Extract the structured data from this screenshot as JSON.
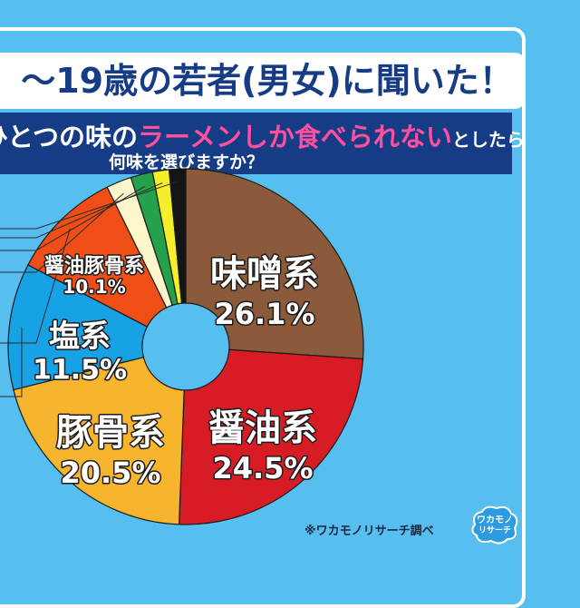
{
  "header": {
    "title": "〜19歳の若者(男女)に聞いた！",
    "question_pre": "ひとつの味の",
    "question_highlight": "ラーメンしか食べられない",
    "question_post": "としたら",
    "question_line2": "何味を選びますか？"
  },
  "source": "※ワカモノリサーチ調べ",
  "logo_text": "ワカモノリサーチ",
  "colors": {
    "background": "#56bfef",
    "title_text": "#163c86",
    "question_band": "#163c86",
    "highlight": "#ff4f9e"
  },
  "chart_data": {
    "type": "pie",
    "donut": true,
    "title": "",
    "series": [
      {
        "name": "味噌系",
        "value_label": "26.1%",
        "value": 26.1,
        "color": "#8b5a3a"
      },
      {
        "name": "醤油系",
        "value_label": "24.5%",
        "value": 24.5,
        "color": "#d81c26"
      },
      {
        "name": "豚骨系",
        "value_label": "20.5%",
        "value": 20.5,
        "color": "#f6b52c"
      },
      {
        "name": "塩系",
        "value_label": "11.5%",
        "value": 11.5,
        "color": "#18a2e6"
      },
      {
        "name": "醤油豚骨系",
        "value_label": "10.1%",
        "value": 10.1,
        "color": "#f04e17"
      },
      {
        "name": "",
        "value": 2.3,
        "color": "#fff7cc"
      },
      {
        "name": "",
        "value": 2.0,
        "color": "#24a14a"
      },
      {
        "name": "",
        "value": 1.5,
        "color": "#f4ef2a"
      },
      {
        "name": "",
        "value": 1.5,
        "color": "#141414"
      }
    ]
  }
}
